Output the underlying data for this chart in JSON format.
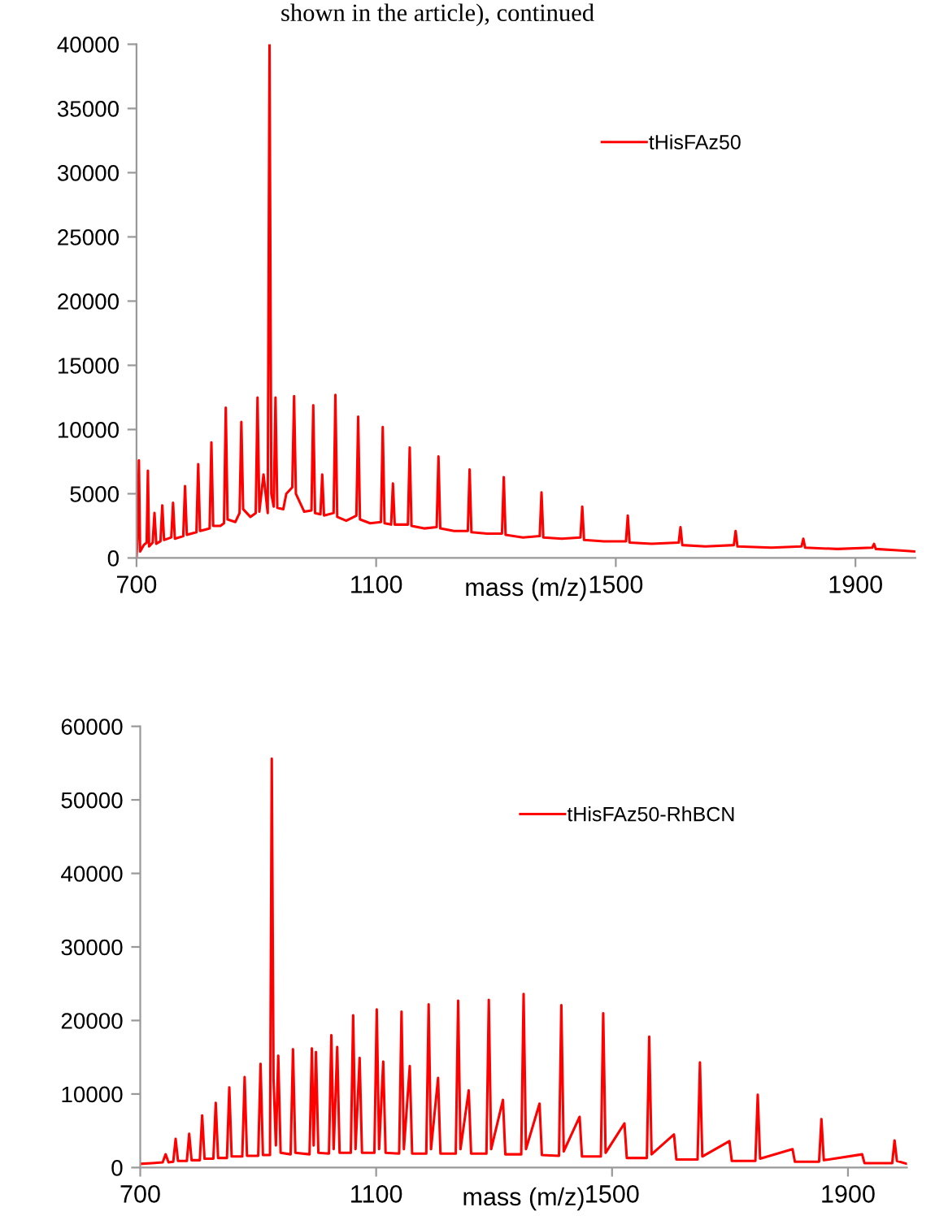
{
  "chart_data": [
    {
      "type": "line",
      "xlabel": "mass (m/z)",
      "annotations": [
        "shown in the article), continued"
      ],
      "xlim": [
        700,
        2000
      ],
      "ylim": [
        0,
        40000
      ],
      "xticks": [
        700,
        1100,
        1500,
        1900
      ],
      "yticks": [
        0,
        5000,
        10000,
        15000,
        20000,
        25000,
        30000,
        35000,
        40000
      ],
      "grid": false,
      "legend": "top right",
      "series": [
        {
          "name": "tHisFAz50",
          "color": "#ff0000",
          "x": [
            700,
            702,
            704,
            706,
            712,
            717,
            719,
            721,
            727,
            730,
            733,
            740,
            743,
            746,
            758,
            761,
            764,
            778,
            781,
            784,
            800,
            803,
            806,
            822,
            825,
            828,
            840,
            846,
            849,
            852,
            865,
            872,
            875,
            878,
            890,
            899,
            902,
            905,
            912,
            919,
            922,
            925,
            929,
            932,
            935,
            945,
            950,
            960,
            963,
            966,
            980,
            992,
            995,
            998,
            1007,
            1010,
            1013,
            1029,
            1032,
            1035,
            1050,
            1067,
            1070,
            1073,
            1090,
            1108,
            1111,
            1114,
            1125,
            1128,
            1131,
            1153,
            1156,
            1159,
            1180,
            1201,
            1204,
            1207,
            1230,
            1253,
            1256,
            1259,
            1285,
            1310,
            1313,
            1316,
            1345,
            1373,
            1376,
            1379,
            1410,
            1441,
            1444,
            1447,
            1480,
            1517,
            1520,
            1523,
            1560,
            1605,
            1608,
            1611,
            1650,
            1697,
            1700,
            1703,
            1760,
            1810,
            1813,
            1816,
            1870,
            1928,
            1931,
            1934,
            1970,
            2000
          ],
          "values": [
            0,
            2000,
            7600,
            500,
            1000,
            1200,
            6800,
            900,
            1200,
            3500,
            1100,
            1300,
            4100,
            1400,
            1600,
            4300,
            1500,
            1700,
            5600,
            1800,
            2000,
            7300,
            2100,
            2300,
            9000,
            2500,
            2500,
            2700,
            11700,
            3000,
            2800,
            3500,
            10600,
            3800,
            3200,
            3500,
            12500,
            3600,
            6500,
            3500,
            40000,
            5000,
            4000,
            12500,
            3900,
            3800,
            5000,
            5500,
            12600,
            5000,
            3600,
            3700,
            11900,
            3500,
            3400,
            6500,
            3300,
            3500,
            12700,
            3200,
            2900,
            3300,
            11000,
            3000,
            2700,
            2800,
            10200,
            2700,
            2600,
            5800,
            2600,
            2600,
            8600,
            2500,
            2300,
            2400,
            7900,
            2300,
            2100,
            2100,
            6900,
            2000,
            1900,
            1900,
            6300,
            1800,
            1600,
            1700,
            5100,
            1600,
            1500,
            1600,
            4000,
            1400,
            1300,
            1300,
            3300,
            1200,
            1100,
            1200,
            2400,
            1000,
            900,
            1000,
            2100,
            900,
            800,
            900,
            1500,
            800,
            700,
            800,
            1100,
            700,
            600,
            500
          ]
        }
      ]
    },
    {
      "type": "line",
      "xlabel": "mass (m/z)",
      "xlim": [
        700,
        2000
      ],
      "ylim": [
        0,
        60000
      ],
      "xticks": [
        700,
        1100,
        1500,
        1900
      ],
      "yticks": [
        0,
        10000,
        20000,
        30000,
        40000,
        50000,
        60000
      ],
      "grid": false,
      "legend": "top right",
      "series": [
        {
          "name": "tHisFAz50-RhBCN",
          "color": "#ff0000",
          "x": [
            700,
            720,
            738,
            743,
            748,
            756,
            760,
            764,
            779,
            783,
            787,
            801,
            805,
            809,
            824,
            828,
            832,
            847,
            851,
            855,
            873,
            877,
            881,
            900,
            904,
            908,
            920,
            923,
            926,
            930,
            934,
            938,
            955,
            959,
            963,
            987,
            991,
            994,
            998,
            1002,
            1020,
            1024,
            1028,
            1034,
            1038,
            1057,
            1061,
            1065,
            1072,
            1076,
            1097,
            1101,
            1105,
            1112,
            1116,
            1139,
            1143,
            1147,
            1157,
            1161,
            1185,
            1189,
            1193,
            1205,
            1209,
            1235,
            1239,
            1243,
            1257,
            1261,
            1287,
            1291,
            1295,
            1315,
            1319,
            1346,
            1350,
            1354,
            1377,
            1381,
            1410,
            1414,
            1418,
            1445,
            1449,
            1481,
            1485,
            1489,
            1521,
            1525,
            1559,
            1563,
            1567,
            1605,
            1609,
            1645,
            1649,
            1653,
            1699,
            1703,
            1743,
            1747,
            1751,
            1806,
            1810,
            1851,
            1855,
            1859,
            1924,
            1928,
            1975,
            1979,
            1983,
            2000
          ],
          "values": [
            500,
            600,
            700,
            1800,
            700,
            800,
            3900,
            900,
            900,
            4600,
            1000,
            1000,
            7100,
            1200,
            1200,
            8800,
            1300,
            1300,
            10900,
            1500,
            1500,
            12300,
            1600,
            1600,
            14100,
            1700,
            1700,
            55600,
            12000,
            3000,
            15200,
            2000,
            1800,
            16100,
            2000,
            1800,
            16200,
            3000,
            15700,
            2000,
            1900,
            18000,
            2500,
            16400,
            2000,
            2000,
            20700,
            2500,
            14900,
            2000,
            2000,
            21500,
            2500,
            14400,
            2000,
            1900,
            21200,
            2500,
            13800,
            1900,
            1900,
            22200,
            2500,
            12200,
            1900,
            1900,
            22700,
            2500,
            10500,
            1900,
            1900,
            22800,
            2500,
            9200,
            1800,
            1800,
            23600,
            2500,
            8700,
            1700,
            1600,
            22100,
            2200,
            6900,
            1500,
            1500,
            21000,
            2000,
            6000,
            1300,
            1300,
            17800,
            1800,
            4500,
            1100,
            1100,
            14300,
            1500,
            3600,
            900,
            900,
            9900,
            1200,
            2500,
            800,
            800,
            6600,
            1000,
            1800,
            600,
            600,
            3700,
            900,
            500
          ]
        }
      ]
    }
  ]
}
